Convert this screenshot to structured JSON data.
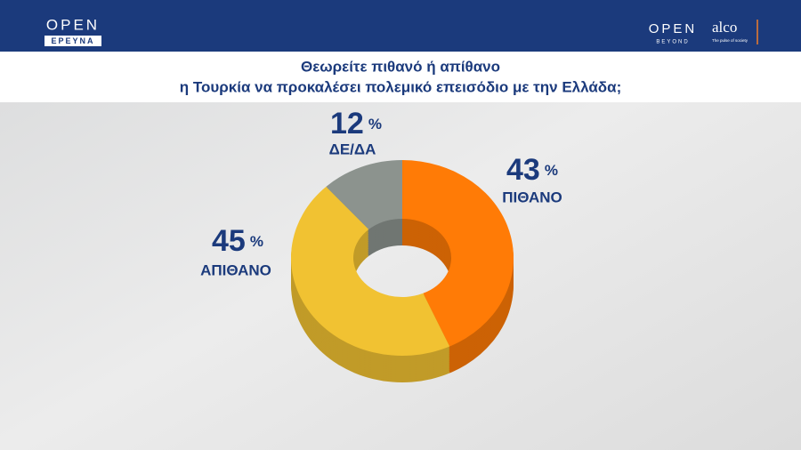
{
  "header": {
    "left_logo": "OPEN",
    "left_logo_sub": "ΕΡΕΥΝΑ",
    "right_logo": "OPEN",
    "right_logo_sub": "BEYOND",
    "partner_logo": "alco",
    "partner_tagline": "The pulse of society"
  },
  "chart_data": {
    "type": "pie",
    "donut": true,
    "title": [
      "Θεωρείτε πιθανό ή απίθανο",
      "η Τουρκία να προκαλέσει πολεμικό επεισόδιο με την Ελλάδα;"
    ],
    "categories": [
      "ΠΙΘΑΝΟ",
      "ΑΠΙΘΑΝΟ",
      "ΔΕ/ΔΑ"
    ],
    "values": [
      43,
      45,
      12
    ],
    "value_unit": "%",
    "colors": [
      "#ff7b06",
      "#f1c232",
      "#8c938e"
    ]
  }
}
